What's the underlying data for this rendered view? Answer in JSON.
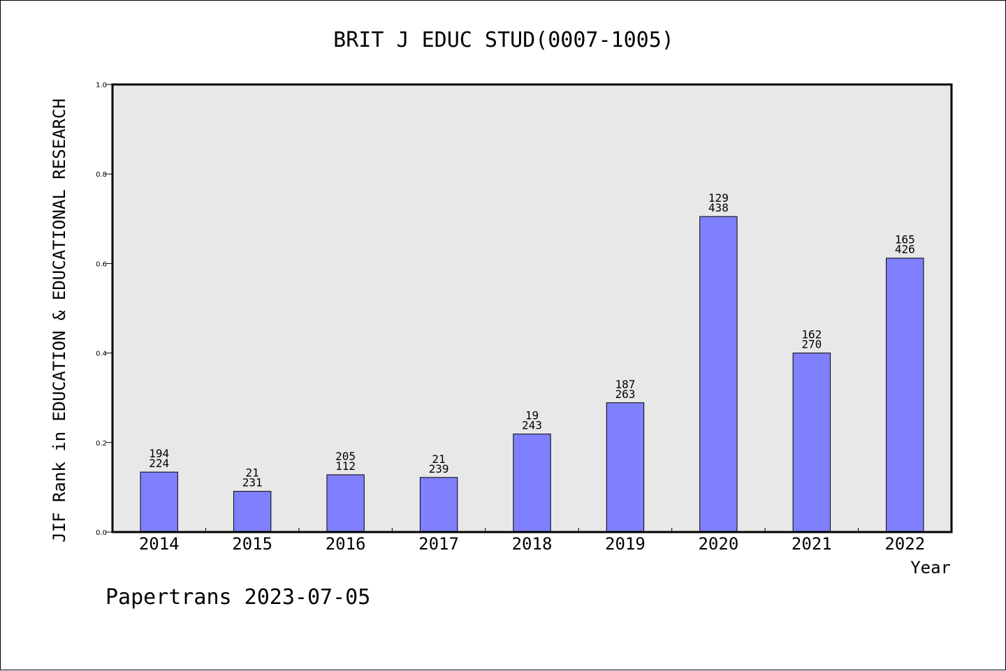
{
  "chart_data": {
    "type": "bar",
    "title": "BRIT J EDUC STUD(0007-1005)",
    "xlabel": "Year",
    "ylabel": "JIF Rank in EDUCATION & EDUCATIONAL RESEARCH",
    "ylim": [
      0,
      1.0
    ],
    "yticks": [
      "0.0",
      "0.2",
      "0.4",
      "0.6",
      "0.8",
      "1.0"
    ],
    "categories": [
      "2014",
      "2015",
      "2016",
      "2017",
      "2018",
      "2019",
      "2020",
      "2021",
      "2022"
    ],
    "values": [
      0.134,
      0.091,
      0.128,
      0.122,
      0.219,
      0.289,
      0.705,
      0.4,
      0.612
    ],
    "rank_labels": [
      "194",
      "21",
      "205",
      "21",
      "19",
      "187",
      "129",
      "162",
      "165"
    ],
    "total_labels": [
      "224",
      "231",
      "112",
      "239",
      "243",
      "263",
      "438",
      "270",
      "426"
    ],
    "bar_color": "#8080ff",
    "plot_background": "#e8e8e8",
    "grid": false
  },
  "footer": {
    "watermark": "Papertrans 2023-07-05"
  }
}
